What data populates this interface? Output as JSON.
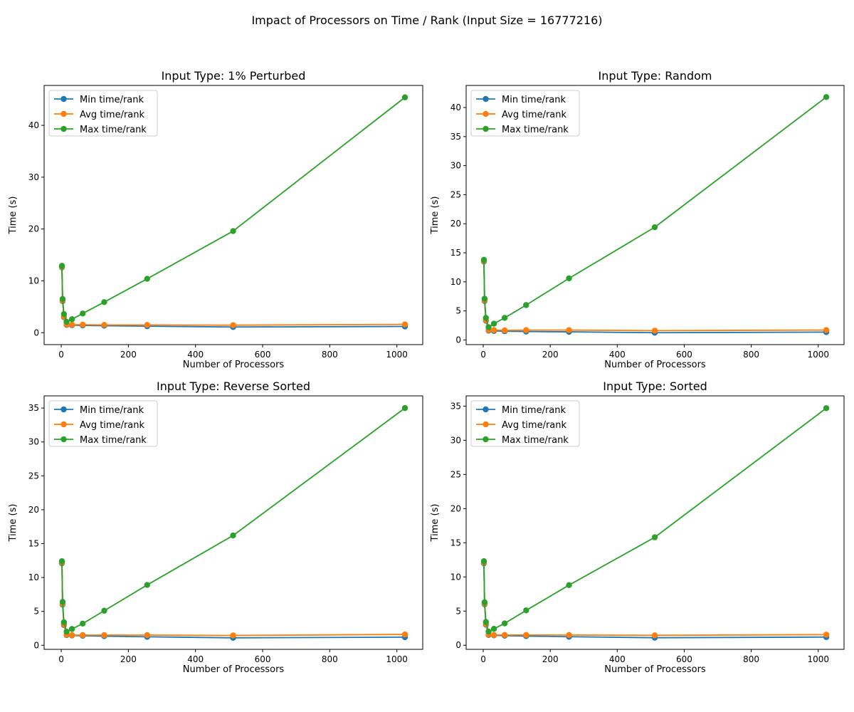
{
  "figure": {
    "title": "Impact of Processors on Time / Rank (Input Size = 16777216)"
  },
  "colors": {
    "min": "#1f77b4",
    "avg": "#ff7f0e",
    "max": "#2ca02c"
  },
  "chart_data": [
    {
      "type": "line",
      "title": "Input Type: 1% Perturbed",
      "xlabel": "Number of Processors",
      "ylabel": "Time (s)",
      "x": [
        2,
        4,
        8,
        16,
        32,
        64,
        128,
        256,
        512,
        1024
      ],
      "xlim": [
        -51,
        1077
      ],
      "ylim": [
        -2.3,
        47.7
      ],
      "xticks": [
        0,
        200,
        400,
        600,
        800,
        1000
      ],
      "yticks": [
        0,
        10,
        20,
        30,
        40
      ],
      "legend": "top-left",
      "series": [
        {
          "name": "Min time/rank",
          "color": "#1f77b4",
          "values": [
            12.6,
            6.1,
            3.0,
            1.5,
            1.45,
            1.4,
            1.35,
            1.25,
            1.1,
            1.2
          ]
        },
        {
          "name": "Avg time/rank",
          "color": "#ff7f0e",
          "values": [
            12.7,
            6.2,
            3.1,
            1.6,
            1.55,
            1.55,
            1.5,
            1.5,
            1.45,
            1.6
          ]
        },
        {
          "name": "Max time/rank",
          "color": "#2ca02c",
          "values": [
            12.9,
            6.5,
            3.6,
            2.1,
            2.6,
            3.7,
            5.9,
            10.4,
            19.6,
            45.4
          ]
        }
      ]
    },
    {
      "type": "line",
      "title": "Input Type: Random",
      "xlabel": "Number of Processors",
      "ylabel": "Time (s)",
      "x": [
        2,
        4,
        8,
        16,
        32,
        64,
        128,
        256,
        512,
        1024
      ],
      "xlim": [
        -51,
        1077
      ],
      "ylim": [
        -0.8,
        43.8
      ],
      "xticks": [
        0,
        200,
        400,
        600,
        800,
        1000
      ],
      "yticks": [
        0,
        5,
        10,
        15,
        20,
        25,
        30,
        35,
        40
      ],
      "legend": "top-left",
      "series": [
        {
          "name": "Min time/rank",
          "color": "#1f77b4",
          "values": [
            13.5,
            6.7,
            3.3,
            1.6,
            1.55,
            1.5,
            1.45,
            1.4,
            1.25,
            1.35
          ]
        },
        {
          "name": "Avg time/rank",
          "color": "#ff7f0e",
          "values": [
            13.6,
            6.8,
            3.4,
            1.7,
            1.7,
            1.65,
            1.7,
            1.7,
            1.6,
            1.7
          ]
        },
        {
          "name": "Max time/rank",
          "color": "#2ca02c",
          "values": [
            13.8,
            7.1,
            3.8,
            2.2,
            2.8,
            3.8,
            6.0,
            10.6,
            19.4,
            41.8
          ]
        }
      ]
    },
    {
      "type": "line",
      "title": "Input Type: Reverse Sorted",
      "xlabel": "Number of Processors",
      "ylabel": "Time (s)",
      "x": [
        2,
        4,
        8,
        16,
        32,
        64,
        128,
        256,
        512,
        1024
      ],
      "xlim": [
        -51,
        1077
      ],
      "ylim": [
        -0.6,
        36.8
      ],
      "xticks": [
        0,
        200,
        400,
        600,
        800,
        1000
      ],
      "yticks": [
        0,
        5,
        10,
        15,
        20,
        25,
        30,
        35
      ],
      "legend": "top-left",
      "series": [
        {
          "name": "Min time/rank",
          "color": "#1f77b4",
          "values": [
            12.1,
            6.0,
            3.0,
            1.5,
            1.45,
            1.4,
            1.35,
            1.25,
            1.1,
            1.2
          ]
        },
        {
          "name": "Avg time/rank",
          "color": "#ff7f0e",
          "values": [
            12.2,
            6.1,
            3.1,
            1.55,
            1.5,
            1.5,
            1.5,
            1.5,
            1.45,
            1.6
          ]
        },
        {
          "name": "Max time/rank",
          "color": "#2ca02c",
          "values": [
            12.4,
            6.4,
            3.4,
            2.0,
            2.4,
            3.2,
            5.1,
            8.9,
            16.2,
            35.0
          ]
        }
      ]
    },
    {
      "type": "line",
      "title": "Input Type: Sorted",
      "xlabel": "Number of Processors",
      "ylabel": "Time (s)",
      "x": [
        2,
        4,
        8,
        16,
        32,
        64,
        128,
        256,
        512,
        1024
      ],
      "xlim": [
        -51,
        1077
      ],
      "ylim": [
        -0.6,
        36.5
      ],
      "xticks": [
        0,
        200,
        400,
        600,
        800,
        1000
      ],
      "yticks": [
        0,
        5,
        10,
        15,
        20,
        25,
        30,
        35
      ],
      "legend": "top-left",
      "series": [
        {
          "name": "Min time/rank",
          "color": "#1f77b4",
          "values": [
            12.0,
            6.0,
            3.0,
            1.5,
            1.45,
            1.4,
            1.35,
            1.25,
            1.1,
            1.2
          ]
        },
        {
          "name": "Avg time/rank",
          "color": "#ff7f0e",
          "values": [
            12.1,
            6.1,
            3.1,
            1.55,
            1.5,
            1.5,
            1.5,
            1.5,
            1.45,
            1.55
          ]
        },
        {
          "name": "Max time/rank",
          "color": "#2ca02c",
          "values": [
            12.3,
            6.3,
            3.4,
            2.0,
            2.4,
            3.2,
            5.1,
            8.8,
            15.8,
            34.7
          ]
        }
      ]
    }
  ]
}
